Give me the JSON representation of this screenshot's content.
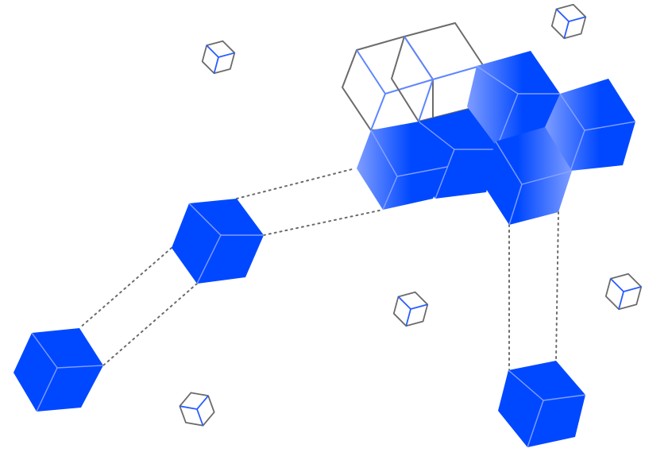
{
  "illustration": {
    "kind": "isometric-cube-cluster",
    "colors": {
      "background": "#ffffff",
      "solid_cube": "#0048ff",
      "solid_cube_light": "#7f9dff",
      "solid_cube_edge": "#8fa8ff",
      "outline_cube": "#6b6b6b",
      "outline_accent": "#2a5cff",
      "connector": "#6b6b6b"
    },
    "connector_style": "dotted"
  }
}
